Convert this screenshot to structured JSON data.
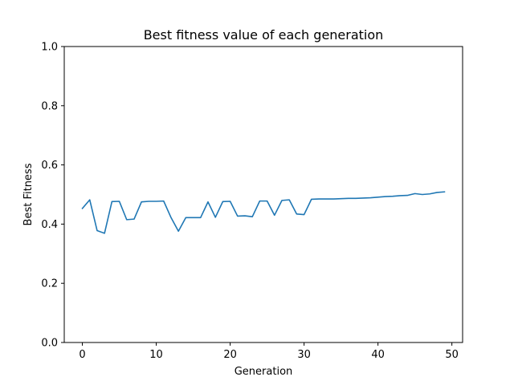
{
  "chart_data": {
    "type": "line",
    "title": "Best fitness value of each generation",
    "xlabel": "Generation",
    "ylabel": "Best Fitness",
    "xlim": [
      -2.45,
      51.45
    ],
    "ylim": [
      0.0,
      1.0
    ],
    "x_ticks": [
      0,
      10,
      20,
      30,
      40,
      50
    ],
    "y_ticks": [
      0.0,
      0.2,
      0.4,
      0.6,
      0.8,
      1.0
    ],
    "grid": false,
    "line_color": "#1f77b4",
    "series": [
      {
        "x": [
          0,
          1,
          2,
          3,
          4,
          5,
          6,
          7,
          8,
          9,
          10,
          11,
          12,
          13,
          14,
          15,
          16,
          17,
          18,
          19,
          20,
          21,
          22,
          23,
          24,
          25,
          26,
          27,
          28,
          29,
          30,
          31,
          32,
          33,
          34,
          35,
          36,
          37,
          38,
          39,
          40,
          41,
          42,
          43,
          44,
          45,
          46,
          47,
          48,
          49
        ],
        "values": [
          0.453,
          0.482,
          0.378,
          0.369,
          0.476,
          0.477,
          0.415,
          0.417,
          0.475,
          0.477,
          0.477,
          0.478,
          0.422,
          0.376,
          0.422,
          0.422,
          0.422,
          0.475,
          0.423,
          0.476,
          0.477,
          0.427,
          0.428,
          0.425,
          0.478,
          0.478,
          0.43,
          0.48,
          0.482,
          0.434,
          0.432,
          0.484,
          0.485,
          0.485,
          0.485,
          0.486,
          0.487,
          0.487,
          0.488,
          0.489,
          0.491,
          0.493,
          0.494,
          0.496,
          0.497,
          0.503,
          0.5,
          0.502,
          0.507,
          0.509
        ]
      }
    ]
  }
}
